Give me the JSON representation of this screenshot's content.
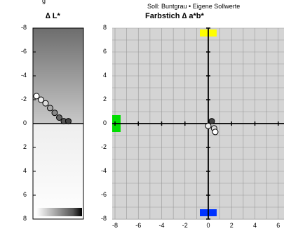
{
  "header": {
    "left_fragment": "g",
    "reference_text": "Soll: Buntgrau • Eigene Sollwerte"
  },
  "panel_l": {
    "title": "∆ L*",
    "tick_labels": [
      "-8",
      "-6",
      "-4",
      "-2",
      "0",
      "2",
      "4",
      "6",
      "8"
    ]
  },
  "panel_ab": {
    "title": "Farbstich ∆ a*b*",
    "y_tick_labels": [
      "8",
      "6",
      "4",
      "2",
      "0",
      "-2",
      "-4",
      "-6",
      "-8"
    ],
    "x_tick_labels": [
      "-8",
      "-6",
      "-4",
      "-2",
      "0",
      "2",
      "4",
      "6"
    ]
  },
  "colors": {
    "plus_b": "#ffff00",
    "minus_b": "#0033ff",
    "minus_a": "#00dd00",
    "grid_bg": "#d4d4d4",
    "grid_line": "#999999"
  },
  "chart_data": [
    {
      "type": "scatter",
      "title": "∆ L*",
      "ylim": [
        -8,
        8
      ],
      "y_axis_inverted": true,
      "points": [
        {
          "index": 0,
          "l": -2.3,
          "fill": "#ffffff"
        },
        {
          "index": 1,
          "l": -2.0,
          "fill": "#eeeeee"
        },
        {
          "index": 2,
          "l": -1.7,
          "fill": "#dddddd"
        },
        {
          "index": 3,
          "l": -1.3,
          "fill": "#aaaaaa"
        },
        {
          "index": 4,
          "l": -0.9,
          "fill": "#888888"
        },
        {
          "index": 5,
          "l": -0.5,
          "fill": "#666666"
        },
        {
          "index": 6,
          "l": -0.2,
          "fill": "#555555"
        },
        {
          "index": 7,
          "l": -0.2,
          "fill": "#444444"
        }
      ]
    },
    {
      "type": "scatter",
      "title": "Farbstich ∆ a*b*",
      "xlim": [
        -8,
        8
      ],
      "ylim": [
        -8,
        8
      ],
      "grid": true,
      "points": [
        {
          "a": 0.3,
          "b": 0.2,
          "fill": "#444444"
        },
        {
          "a": 0.0,
          "b": -0.2,
          "fill": "#eeeeee"
        },
        {
          "a": 0.5,
          "b": -0.4,
          "fill": "#dddddd"
        },
        {
          "a": 0.6,
          "b": -0.7,
          "fill": "#ffffff"
        }
      ]
    }
  ]
}
